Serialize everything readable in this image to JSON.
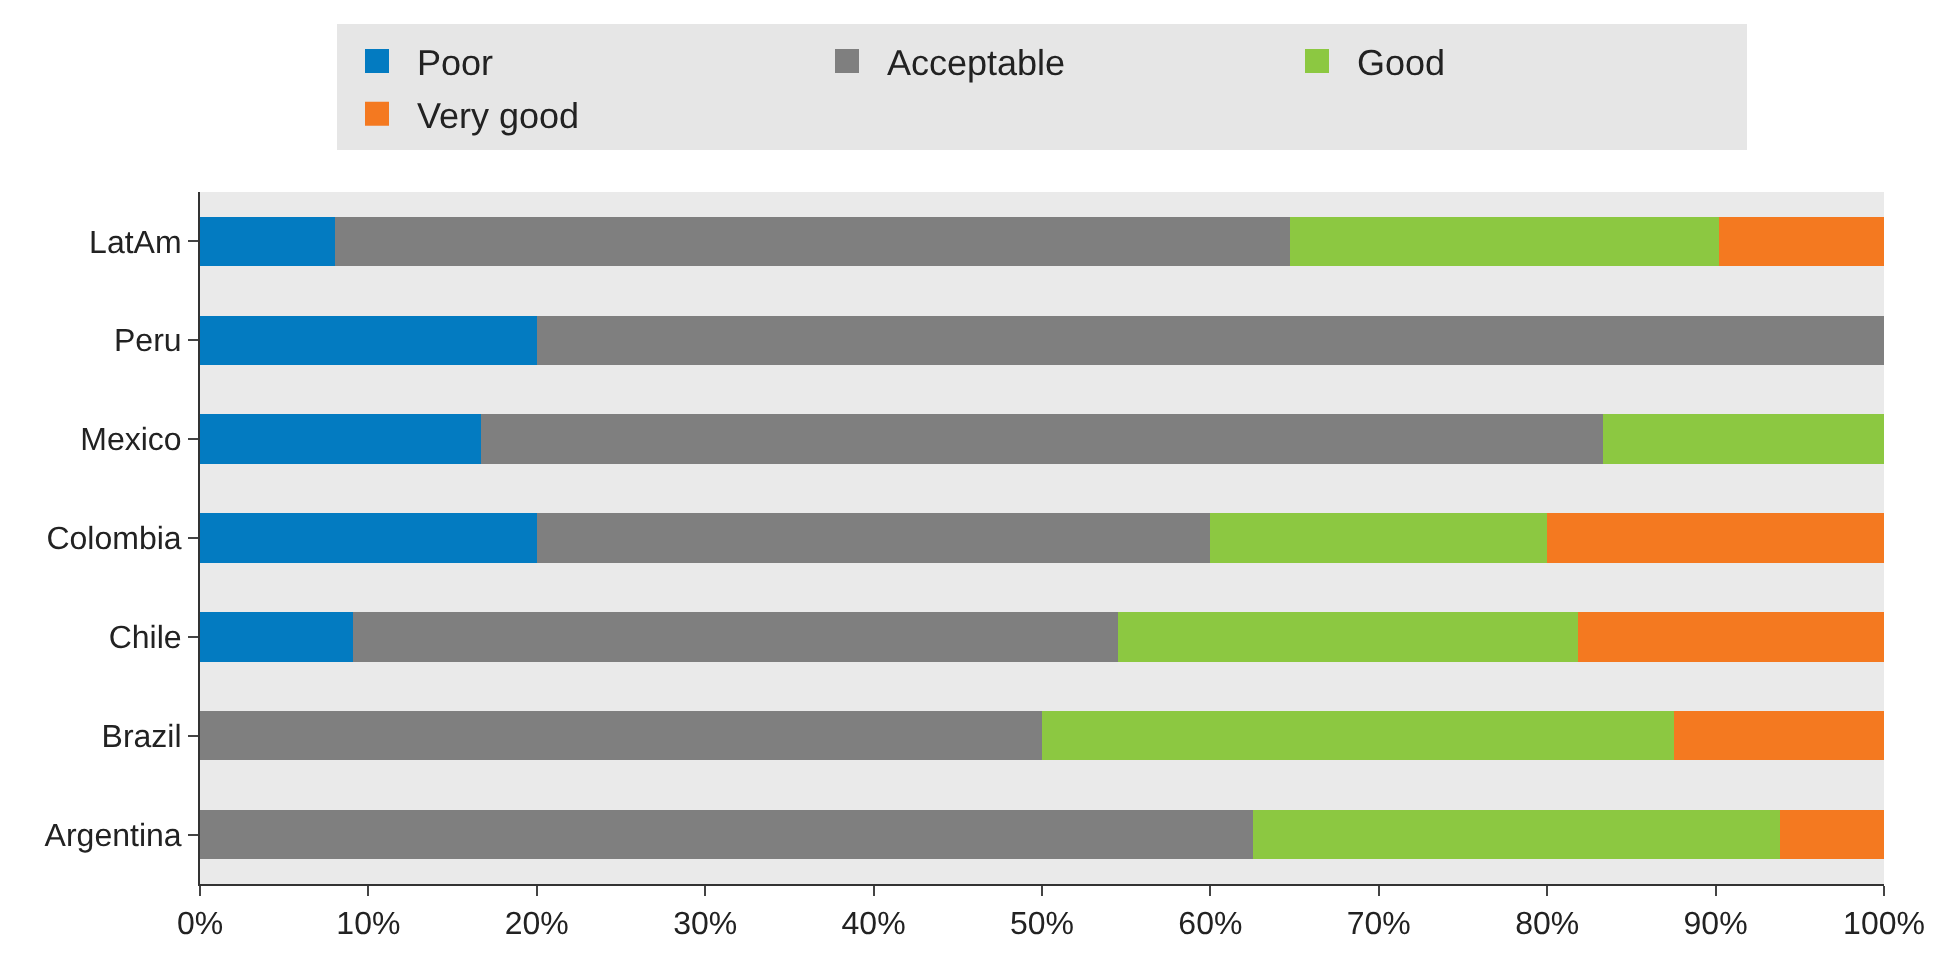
{
  "chart_data": {
    "type": "bar",
    "orientation": "horizontal",
    "stacked": true,
    "categories": [
      "LatAm",
      "Peru",
      "Mexico",
      "Colombia",
      "Chile",
      "Brazil",
      "Argentina"
    ],
    "series": [
      {
        "name": "Poor",
        "color": "#037bc1",
        "values": [
          8,
          20,
          16.7,
          20,
          9.1,
          0,
          0
        ]
      },
      {
        "name": "Acceptable",
        "color": "#7f7f7f",
        "values": [
          56.7,
          80,
          66.6,
          40,
          45.4,
          50,
          62.5
        ]
      },
      {
        "name": "Good",
        "color": "#8cc841",
        "values": [
          25.5,
          0,
          16.7,
          20,
          27.3,
          37.5,
          31.3
        ]
      },
      {
        "name": "Very good",
        "color": "#f47920",
        "values": [
          9.8,
          0,
          0,
          20,
          18.2,
          12.5,
          6.2
        ]
      }
    ],
    "xlim": [
      0,
      100
    ],
    "xticks": [
      {
        "value": 0,
        "label": "0%"
      },
      {
        "value": 10,
        "label": "10%"
      },
      {
        "value": 20,
        "label": "20%"
      },
      {
        "value": 30,
        "label": "30%"
      },
      {
        "value": 40,
        "label": "40%"
      },
      {
        "value": 50,
        "label": "50%"
      },
      {
        "value": 60,
        "label": "60%"
      },
      {
        "value": 70,
        "label": "70%"
      },
      {
        "value": 80,
        "label": "80%"
      },
      {
        "value": 90,
        "label": "90%"
      },
      {
        "value": 100,
        "label": "100%"
      }
    ],
    "grid": false,
    "legend": "top"
  }
}
